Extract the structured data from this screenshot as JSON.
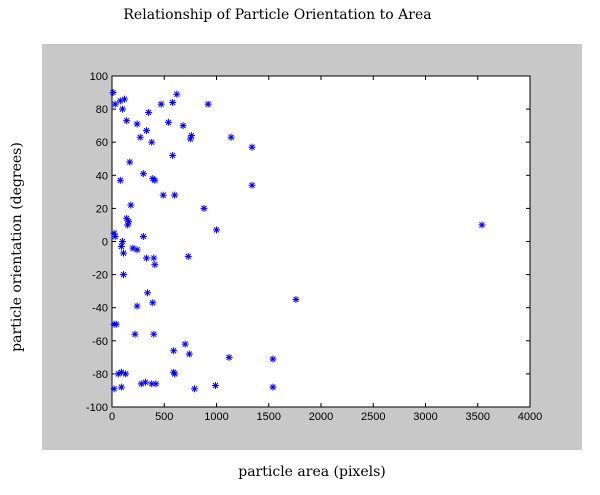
{
  "chart_data": {
    "type": "scatter",
    "title": "Relationship of Particle Orientation to Area",
    "xlabel": "particle area (pixels)",
    "ylabel": "particle orientation (degrees)",
    "xlim": [
      0,
      4000
    ],
    "ylim": [
      -100,
      100
    ],
    "xticks": [
      "0",
      "500",
      "1000",
      "1500",
      "2000",
      "2500",
      "3000",
      "3500",
      "4000"
    ],
    "yticks": [
      "100",
      "80",
      "60",
      "40",
      "20",
      "0",
      "-20",
      "-40",
      "-60",
      "-80",
      "-100"
    ],
    "grid": false,
    "marker": "asterisk",
    "marker_color": "#0000ff",
    "points": [
      [
        10,
        90
      ],
      [
        30,
        83
      ],
      [
        80,
        85
      ],
      [
        120,
        86
      ],
      [
        100,
        80
      ],
      [
        140,
        73
      ],
      [
        240,
        71
      ],
      [
        270,
        63
      ],
      [
        330,
        67
      ],
      [
        350,
        78
      ],
      [
        380,
        60
      ],
      [
        470,
        83
      ],
      [
        540,
        72
      ],
      [
        580,
        84
      ],
      [
        620,
        89
      ],
      [
        680,
        70
      ],
      [
        750,
        62
      ],
      [
        760,
        64
      ],
      [
        580,
        52
      ],
      [
        920,
        83
      ],
      [
        1140,
        63
      ],
      [
        1340,
        57
      ],
      [
        170,
        48
      ],
      [
        300,
        41
      ],
      [
        410,
        37
      ],
      [
        390,
        38
      ],
      [
        490,
        28
      ],
      [
        600,
        28
      ],
      [
        80,
        37
      ],
      [
        880,
        20
      ],
      [
        1000,
        7
      ],
      [
        1340,
        34
      ],
      [
        180,
        22
      ],
      [
        20,
        5
      ],
      [
        30,
        3
      ],
      [
        140,
        14
      ],
      [
        160,
        12
      ],
      [
        150,
        10
      ],
      [
        300,
        3
      ],
      [
        100,
        0
      ],
      [
        90,
        -3
      ],
      [
        110,
        -7
      ],
      [
        200,
        -4
      ],
      [
        240,
        -5
      ],
      [
        330,
        -10
      ],
      [
        400,
        -10
      ],
      [
        410,
        -14
      ],
      [
        730,
        -9
      ],
      [
        110,
        -20
      ],
      [
        240,
        -39
      ],
      [
        340,
        -31
      ],
      [
        390,
        -37
      ],
      [
        20,
        -50
      ],
      [
        40,
        -50
      ],
      [
        220,
        -56
      ],
      [
        400,
        -56
      ],
      [
        590,
        -66
      ],
      [
        700,
        -62
      ],
      [
        740,
        -68
      ],
      [
        1120,
        -70
      ],
      [
        1540,
        -71
      ],
      [
        1760,
        -35
      ],
      [
        3540,
        10
      ],
      [
        60,
        -80
      ],
      [
        90,
        -79
      ],
      [
        130,
        -80
      ],
      [
        590,
        -79
      ],
      [
        600,
        -80
      ],
      [
        20,
        -89
      ],
      [
        90,
        -88
      ],
      [
        280,
        -86
      ],
      [
        320,
        -85
      ],
      [
        380,
        -86
      ],
      [
        420,
        -86
      ],
      [
        790,
        -89
      ],
      [
        990,
        -87
      ],
      [
        1540,
        -88
      ]
    ]
  }
}
